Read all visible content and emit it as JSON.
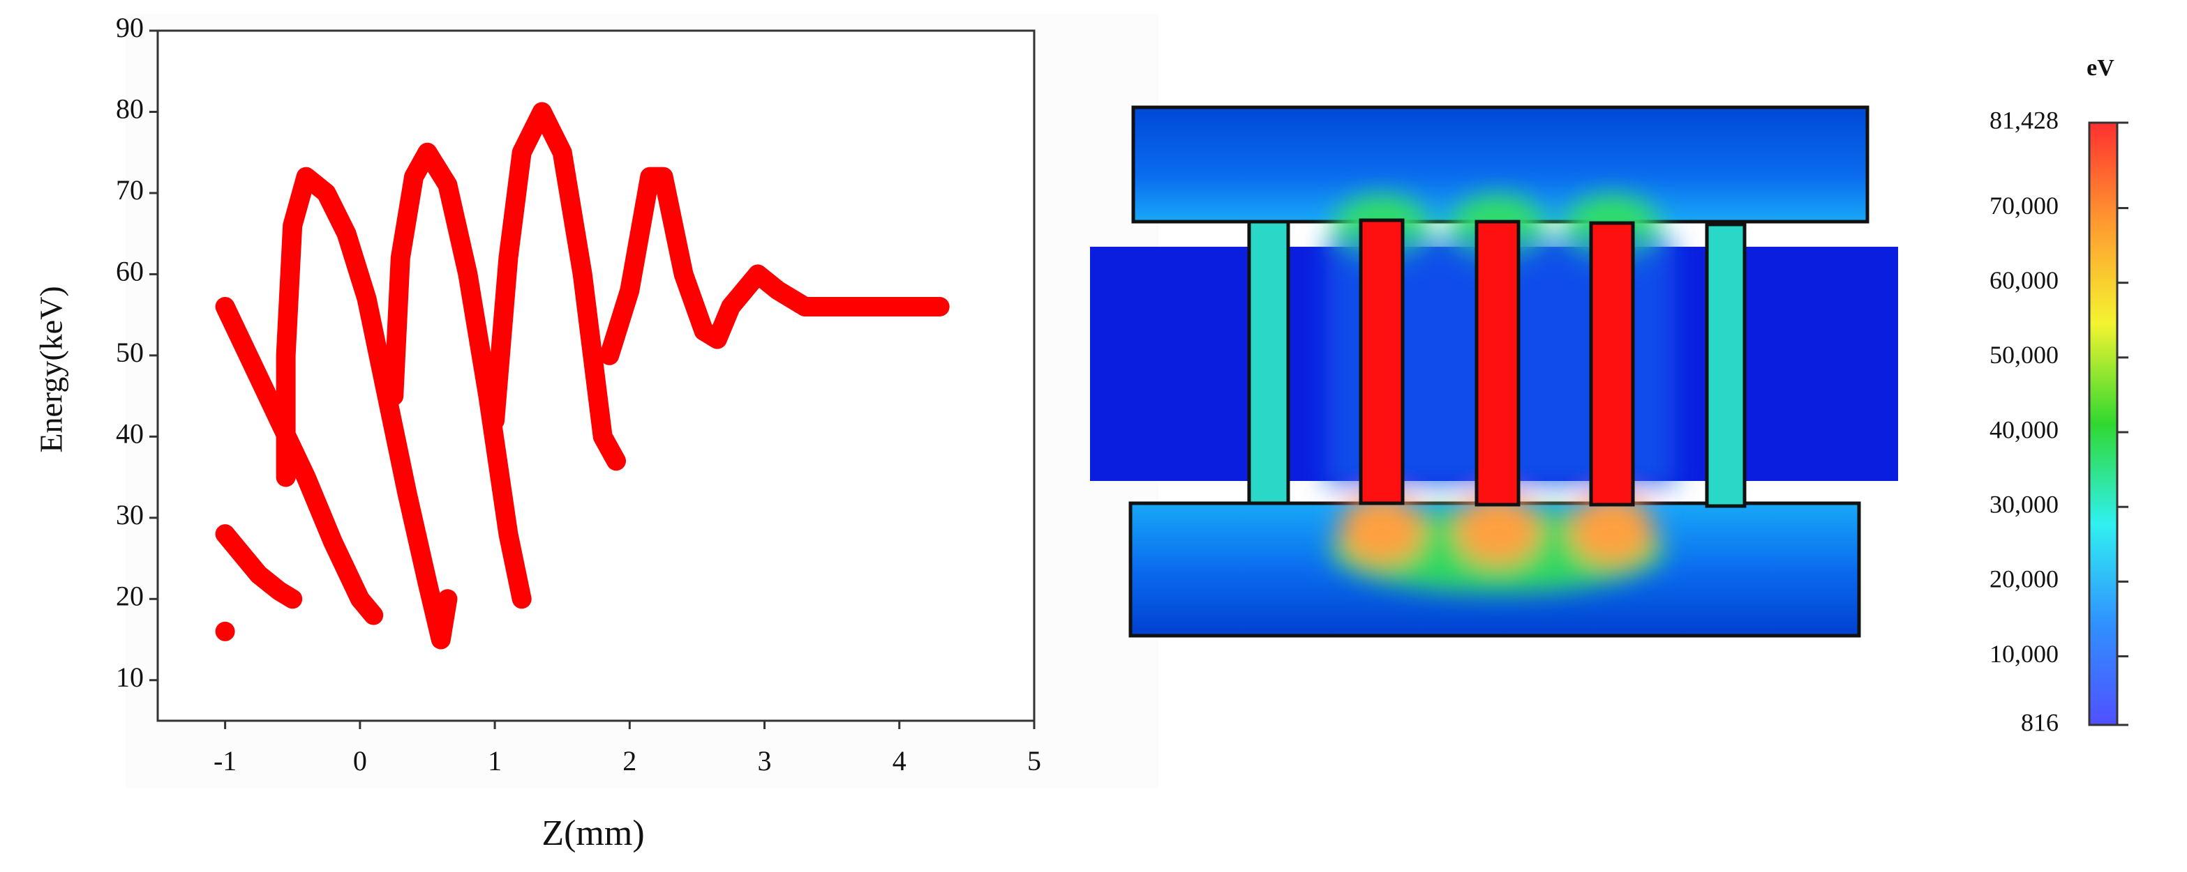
{
  "chart_data": [
    {
      "type": "line",
      "x_label": "Z(mm)",
      "y_label": "Energy(keV)",
      "xlim": [
        -1.5,
        5
      ],
      "xticks": [
        -1,
        0,
        1,
        2,
        3,
        4,
        5
      ],
      "ylim": [
        5,
        90
      ],
      "yticks": [
        10,
        20,
        30,
        40,
        50,
        60,
        70,
        80,
        90
      ],
      "color": "#ff0000",
      "x": [
        -1,
        -0.8,
        -0.6,
        -0.4,
        -0.2,
        0,
        0.1,
        null,
        -1,
        -0.9,
        -0.75,
        -0.6,
        -0.5,
        null,
        -1,
        null,
        -0.55,
        -0.55,
        -0.5,
        -0.4,
        -0.25,
        -0.1,
        0.05,
        0.2,
        0.35,
        0.5,
        0.6,
        0.65,
        null,
        0.25,
        0.3,
        0.4,
        0.5,
        0.65,
        0.8,
        0.95,
        1.1,
        1.2,
        null,
        1.0,
        1.1,
        1.2,
        1.35,
        1.5,
        1.65,
        1.8,
        1.9,
        null,
        1.85,
        2.0,
        2.15,
        2.25,
        2.4,
        2.55,
        2.65,
        2.75,
        2.95,
        3.1,
        3.3,
        4.3
      ],
      "values": [
        56,
        49,
        42,
        35,
        27,
        20,
        18,
        null,
        28,
        26,
        23,
        21,
        20,
        null,
        16,
        null,
        35,
        50,
        66,
        72,
        70,
        65,
        57,
        45,
        33,
        22,
        15,
        20,
        null,
        45,
        62,
        72,
        75,
        71,
        60,
        45,
        28,
        20,
        null,
        42,
        62,
        75,
        80,
        75,
        60,
        40,
        37,
        null,
        50,
        58,
        72,
        72,
        60,
        53,
        52,
        56,
        60,
        58,
        56,
        56
      ]
    },
    {
      "type": "colorbar",
      "title": "eV",
      "lim": [
        816,
        81428
      ],
      "ticks": [
        {
          "value": 81428,
          "label": "81,428"
        },
        {
          "value": 70000,
          "label": "70,000"
        },
        {
          "value": 60000,
          "label": "60,000"
        },
        {
          "value": 50000,
          "label": "50,000"
        },
        {
          "value": 40000,
          "label": "40,000"
        },
        {
          "value": 30000,
          "label": "30,000"
        },
        {
          "value": 20000,
          "label": "20,000"
        },
        {
          "value": 10000,
          "label": "10,000"
        },
        816
      ],
      "colors": [
        "#ff3030",
        "#ff9a30",
        "#f4f430",
        "#30d830",
        "#30f0f0",
        "#3090ff",
        "#5050ff"
      ]
    }
  ]
}
